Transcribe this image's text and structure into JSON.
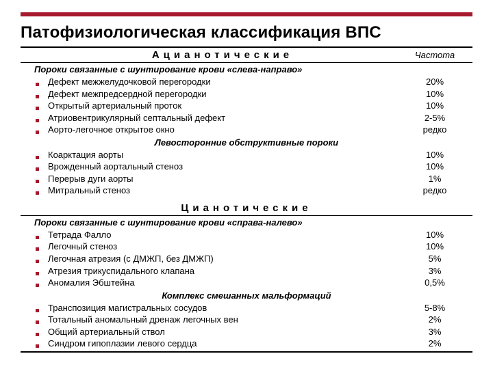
{
  "accent_color": "#a6192e",
  "title": "Патофизиологическая классификация ВПС",
  "col_header_left": "Ацианотические",
  "col_header_right": "Частота",
  "sections": [
    {
      "group_header": null,
      "sub": "Пороки связанные с шунтирование крови «слева-направо»",
      "sub_center": false,
      "items": [
        {
          "label": "Дефект межжелудочковой перегородки",
          "freq": "20%"
        },
        {
          "label": "Дефект межпредсердной перегородки",
          "freq": "10%"
        },
        {
          "label": "Открытый артериальный проток",
          "freq": "10%"
        },
        {
          "label": "Атриовентрикулярный септальный дефект",
          "freq": "2-5%"
        },
        {
          "label": "Аорто-легочное открытое окно",
          "freq": "редко"
        }
      ]
    },
    {
      "group_header": null,
      "sub": "Левосторонние обструктивные пороки",
      "sub_center": true,
      "items": [
        {
          "label": "Коарктация аорты",
          "freq": "10%"
        },
        {
          "label": "Врожденный аортальный стеноз",
          "freq": "10%"
        },
        {
          "label": "Перерыв дуги аорты",
          "freq": "1%"
        },
        {
          "label": "Митральный стеноз",
          "freq": "редко"
        }
      ]
    },
    {
      "group_header": "Цианотические",
      "sub": "Пороки связанные с шунтирование крови «справа-налево»",
      "sub_center": false,
      "items": [
        {
          "label": "Тетрада Фалло",
          "freq": "10%"
        },
        {
          "label": "Легочный стеноз",
          "freq": "10%"
        },
        {
          "label": "Легочная атрезия (с ДМЖП, без ДМЖП)",
          "freq": "5%"
        },
        {
          "label": "Атрезия трикуспидального клапана",
          "freq": "3%"
        },
        {
          "label": "Аномалия Эбштейна",
          "freq": "0,5%"
        }
      ]
    },
    {
      "group_header": null,
      "sub": "Комплекс смешанных мальформаций",
      "sub_center": true,
      "items": [
        {
          "label": "Транспозиция магистральных сосудов",
          "freq": "5-8%"
        },
        {
          "label": "Тотальный аномальный дренаж легочных вен",
          "freq": "2%"
        },
        {
          "label": "Общий артериальный ствол",
          "freq": "3%"
        },
        {
          "label": "Синдром гипоплазии левого сердца",
          "freq": "2%"
        }
      ]
    }
  ]
}
